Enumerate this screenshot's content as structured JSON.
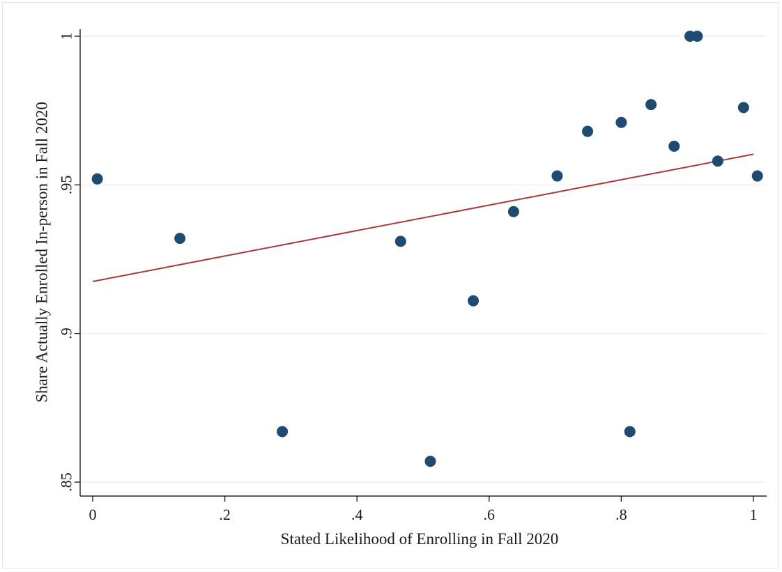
{
  "chart_data": {
    "type": "scatter",
    "title": "",
    "xlabel": "Stated Likelihood of Enrolling in Fall 2020",
    "ylabel": "Share Actually Enrolled In-person in Fall 2020",
    "xlim": [
      0,
      1
    ],
    "ylim": [
      0.85,
      1
    ],
    "x_ticks": [
      {
        "value": 0,
        "label": "0"
      },
      {
        "value": 0.2,
        "label": ".2"
      },
      {
        "value": 0.4,
        "label": ".4"
      },
      {
        "value": 0.6,
        "label": ".6"
      },
      {
        "value": 0.8,
        "label": ".8"
      },
      {
        "value": 1,
        "label": "1"
      }
    ],
    "y_ticks": [
      {
        "value": 0.85,
        "label": ".85"
      },
      {
        "value": 0.9,
        "label": ".9"
      },
      {
        "value": 0.95,
        "label": ".95"
      },
      {
        "value": 1,
        "label": "1"
      }
    ],
    "grid": "horizontal",
    "legend": "none",
    "points": [
      {
        "x": 0.007,
        "y": 0.952
      },
      {
        "x": 0.132,
        "y": 0.932
      },
      {
        "x": 0.287,
        "y": 0.867
      },
      {
        "x": 0.466,
        "y": 0.931
      },
      {
        "x": 0.511,
        "y": 0.857
      },
      {
        "x": 0.576,
        "y": 0.911
      },
      {
        "x": 0.637,
        "y": 0.941
      },
      {
        "x": 0.703,
        "y": 0.953
      },
      {
        "x": 0.749,
        "y": 0.968
      },
      {
        "x": 0.8,
        "y": 0.971
      },
      {
        "x": 0.813,
        "y": 0.867
      },
      {
        "x": 0.845,
        "y": 0.977
      },
      {
        "x": 0.88,
        "y": 0.963
      },
      {
        "x": 0.904,
        "y": 1.0
      },
      {
        "x": 0.915,
        "y": 1.0
      },
      {
        "x": 0.946,
        "y": 0.958
      },
      {
        "x": 0.985,
        "y": 0.976
      },
      {
        "x": 1.006,
        "y": 0.953
      }
    ],
    "fit_line": {
      "x": [
        0.0,
        1.0
      ],
      "y": [
        0.9175,
        0.9603
      ]
    },
    "colors": {
      "points": "#1f4a72",
      "fit": "#a83a3a",
      "grid": "#e8eef2",
      "axis": "#222222"
    }
  }
}
